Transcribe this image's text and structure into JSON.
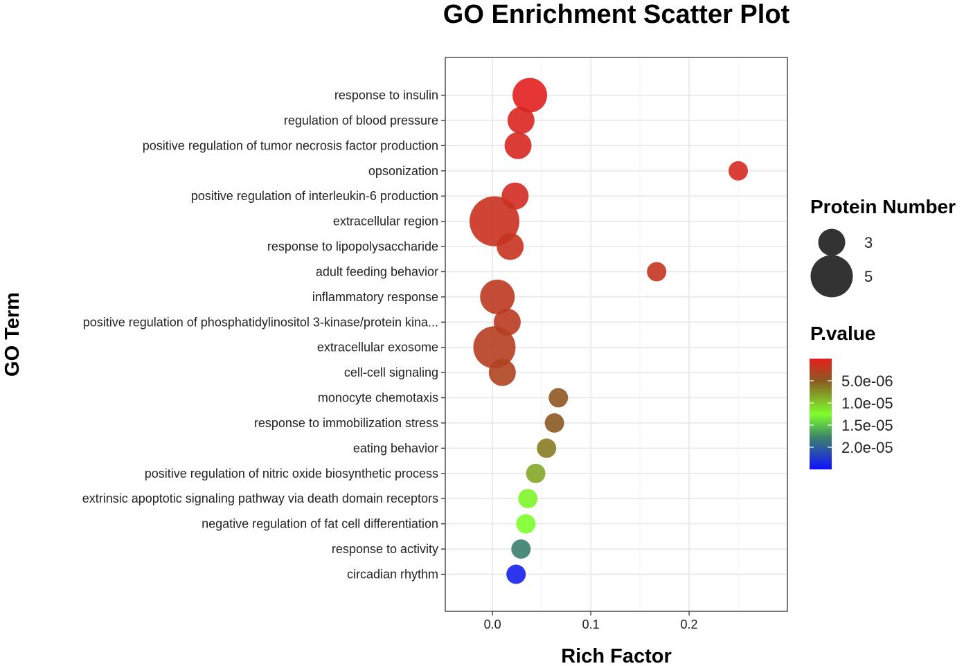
{
  "chart_data": {
    "type": "scatter",
    "title": "GO Enrichment Scatter Plot",
    "xlabel": "Rich Factor",
    "ylabel": "GO Term",
    "xlim": [
      -0.048,
      0.3
    ],
    "x_ticks": [
      0.0,
      0.1,
      0.2
    ],
    "x_tick_labels": [
      "0.0",
      "0.1",
      "0.2"
    ],
    "grid": true,
    "points": [
      {
        "term": "response to insulin",
        "rich_factor": 0.038,
        "protein_number": 4,
        "p_value": 1e-07
      },
      {
        "term": "regulation of blood pressure",
        "rich_factor": 0.029,
        "protein_number": 3,
        "p_value": 6e-07
      },
      {
        "term": "positive regulation of tumor necrosis factor production",
        "rich_factor": 0.026,
        "protein_number": 3,
        "p_value": 8e-07
      },
      {
        "term": "opsonization",
        "rich_factor": 0.25,
        "protein_number": 2,
        "p_value": 9e-07
      },
      {
        "term": "positive regulation of interleukin-6 production",
        "rich_factor": 0.023,
        "protein_number": 3,
        "p_value": 1e-06
      },
      {
        "term": "extracellular region",
        "rich_factor": 0.002,
        "protein_number": 6,
        "p_value": 1.5e-06
      },
      {
        "term": "response to lipopolysaccharide",
        "rich_factor": 0.018,
        "protein_number": 3,
        "p_value": 1.6e-06
      },
      {
        "term": "adult feeding behavior",
        "rich_factor": 0.167,
        "protein_number": 2,
        "p_value": 1.8e-06
      },
      {
        "term": "inflammatory response",
        "rich_factor": 0.005,
        "protein_number": 4,
        "p_value": 2.2e-06
      },
      {
        "term": "positive regulation of phosphatidylinositol 3-kinase/protein kina...",
        "rich_factor": 0.015,
        "protein_number": 3,
        "p_value": 2.3e-06
      },
      {
        "term": "extracellular exosome",
        "rich_factor": 0.002,
        "protein_number": 5,
        "p_value": 2.6e-06
      },
      {
        "term": "cell-cell signaling",
        "rich_factor": 0.01,
        "protein_number": 3,
        "p_value": 3e-06
      },
      {
        "term": "monocyte chemotaxis",
        "rich_factor": 0.067,
        "protein_number": 2,
        "p_value": 4.8e-06
      },
      {
        "term": "response to immobilization stress",
        "rich_factor": 0.063,
        "protein_number": 2,
        "p_value": 5e-06
      },
      {
        "term": "eating behavior",
        "rich_factor": 0.055,
        "protein_number": 2,
        "p_value": 6.5e-06
      },
      {
        "term": "positive regulation of nitric oxide biosynthetic process",
        "rich_factor": 0.044,
        "protein_number": 2,
        "p_value": 8.5e-06
      },
      {
        "term": "extrinsic apoptotic signaling pathway via death domain receptors",
        "rich_factor": 0.036,
        "protein_number": 2,
        "p_value": 1.2e-05
      },
      {
        "term": "negative regulation of fat cell differentiation",
        "rich_factor": 0.034,
        "protein_number": 2,
        "p_value": 1.25e-05
      },
      {
        "term": "response to activity",
        "rich_factor": 0.029,
        "protein_number": 2,
        "p_value": 1.8e-05
      },
      {
        "term": "circadian rhythm",
        "rich_factor": 0.024,
        "protein_number": 2,
        "p_value": 2.4e-05
      }
    ],
    "legend_size": {
      "title": "Protein Number",
      "entries": [
        {
          "label": "3",
          "value": 3
        },
        {
          "label": "5",
          "value": 5
        }
      ]
    },
    "legend_color": {
      "title": "P.value",
      "range": [
        0,
        2.5e-05
      ],
      "stops": [
        {
          "value": 0,
          "color": "#e41f1f"
        },
        {
          "value": 5e-06,
          "color": "#8b5a22"
        },
        {
          "value": 1.25e-05,
          "color": "#7dff2c"
        },
        {
          "value": 1.8e-05,
          "color": "#3a7f6e"
        },
        {
          "value": 2.5e-05,
          "color": "#1010ff"
        }
      ],
      "ticks": [
        {
          "label": "5.0e-06",
          "value": 5e-06
        },
        {
          "label": "1.0e-05",
          "value": 1e-05
        },
        {
          "label": "1.5e-05",
          "value": 1.5e-05
        },
        {
          "label": "2.0e-05",
          "value": 2e-05
        }
      ]
    }
  }
}
